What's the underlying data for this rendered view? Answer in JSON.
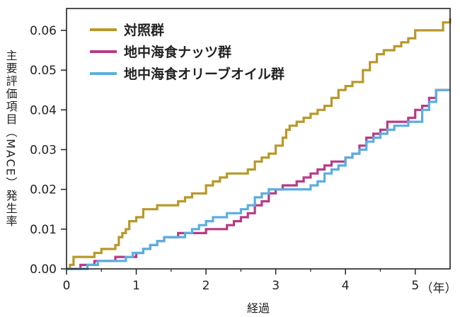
{
  "chart_data": {
    "type": "line",
    "xlabel": "経過",
    "x_unit": "（年）",
    "ylabel": "主要評価項目（MACE）発生率",
    "xlim": [
      0,
      5.5
    ],
    "ylim": [
      0,
      0.0655
    ],
    "x_ticks": [
      0,
      1,
      2,
      3,
      4,
      5
    ],
    "x_tick_labels": [
      "0",
      "1",
      "2",
      "3",
      "4",
      "5"
    ],
    "y_ticks": [
      0,
      0.01,
      0.02,
      0.03,
      0.04,
      0.05,
      0.06
    ],
    "y_tick_labels": [
      "0.00",
      "0.01",
      "0.02",
      "0.03",
      "0.04",
      "0.05",
      "0.06"
    ],
    "grid": false,
    "legend_position": "top-left",
    "series": [
      {
        "name": "対照群",
        "color": "#b8982a",
        "points": [
          [
            0,
            0
          ],
          [
            0.05,
            0.001
          ],
          [
            0.1,
            0.003
          ],
          [
            0.3,
            0.003
          ],
          [
            0.4,
            0.004
          ],
          [
            0.5,
            0.005
          ],
          [
            0.6,
            0.005
          ],
          [
            0.7,
            0.006
          ],
          [
            0.75,
            0.008
          ],
          [
            0.8,
            0.009
          ],
          [
            0.85,
            0.01
          ],
          [
            0.9,
            0.012
          ],
          [
            1.0,
            0.013
          ],
          [
            1.1,
            0.015
          ],
          [
            1.2,
            0.015
          ],
          [
            1.3,
            0.016
          ],
          [
            1.5,
            0.016
          ],
          [
            1.6,
            0.017
          ],
          [
            1.7,
            0.018
          ],
          [
            1.8,
            0.019
          ],
          [
            1.9,
            0.019
          ],
          [
            2.0,
            0.021
          ],
          [
            2.1,
            0.022
          ],
          [
            2.2,
            0.023
          ],
          [
            2.3,
            0.024
          ],
          [
            2.5,
            0.024
          ],
          [
            2.6,
            0.025
          ],
          [
            2.7,
            0.027
          ],
          [
            2.8,
            0.028
          ],
          [
            2.9,
            0.029
          ],
          [
            3.0,
            0.031
          ],
          [
            3.1,
            0.033
          ],
          [
            3.15,
            0.035
          ],
          [
            3.2,
            0.036
          ],
          [
            3.3,
            0.037
          ],
          [
            3.4,
            0.038
          ],
          [
            3.5,
            0.039
          ],
          [
            3.6,
            0.04
          ],
          [
            3.7,
            0.041
          ],
          [
            3.8,
            0.043
          ],
          [
            3.9,
            0.045
          ],
          [
            4.0,
            0.046
          ],
          [
            4.1,
            0.047
          ],
          [
            4.25,
            0.05
          ],
          [
            4.35,
            0.052
          ],
          [
            4.45,
            0.054
          ],
          [
            4.55,
            0.055
          ],
          [
            4.7,
            0.056
          ],
          [
            4.8,
            0.057
          ],
          [
            4.9,
            0.058
          ],
          [
            5.0,
            0.06
          ],
          [
            5.4,
            0.062
          ],
          [
            5.5,
            0.063
          ]
        ]
      },
      {
        "name": "地中海食ナッツ群",
        "color": "#b83a86",
        "points": [
          [
            0,
            0
          ],
          [
            0.2,
            0.001
          ],
          [
            0.4,
            0.002
          ],
          [
            0.6,
            0.002
          ],
          [
            0.7,
            0.003
          ],
          [
            1.0,
            0.004
          ],
          [
            1.1,
            0.005
          ],
          [
            1.2,
            0.006
          ],
          [
            1.3,
            0.007
          ],
          [
            1.4,
            0.008
          ],
          [
            1.6,
            0.009
          ],
          [
            1.8,
            0.009
          ],
          [
            2.0,
            0.01
          ],
          [
            2.15,
            0.01
          ],
          [
            2.25,
            0.01
          ],
          [
            2.3,
            0.011
          ],
          [
            2.4,
            0.012
          ],
          [
            2.5,
            0.013
          ],
          [
            2.6,
            0.014
          ],
          [
            2.7,
            0.016
          ],
          [
            2.8,
            0.017
          ],
          [
            2.9,
            0.019
          ],
          [
            3.0,
            0.02
          ],
          [
            3.1,
            0.021
          ],
          [
            3.2,
            0.021
          ],
          [
            3.3,
            0.022
          ],
          [
            3.4,
            0.023
          ],
          [
            3.5,
            0.024
          ],
          [
            3.6,
            0.025
          ],
          [
            3.7,
            0.026
          ],
          [
            3.8,
            0.027
          ],
          [
            4.0,
            0.028
          ],
          [
            4.1,
            0.029
          ],
          [
            4.2,
            0.031
          ],
          [
            4.3,
            0.033
          ],
          [
            4.4,
            0.034
          ],
          [
            4.5,
            0.035
          ],
          [
            4.6,
            0.037
          ],
          [
            4.8,
            0.037
          ],
          [
            4.9,
            0.038
          ],
          [
            5.0,
            0.04
          ],
          [
            5.1,
            0.041
          ],
          [
            5.2,
            0.043
          ],
          [
            5.3,
            0.045
          ],
          [
            5.5,
            0.045
          ]
        ]
      },
      {
        "name": "地中海食オリーブオイル群",
        "color": "#5aaee0",
        "points": [
          [
            0,
            0
          ],
          [
            0.3,
            0.001
          ],
          [
            0.45,
            0.002
          ],
          [
            0.7,
            0.002
          ],
          [
            0.85,
            0.003
          ],
          [
            0.95,
            0.004
          ],
          [
            1.1,
            0.005
          ],
          [
            1.2,
            0.006
          ],
          [
            1.3,
            0.007
          ],
          [
            1.4,
            0.008
          ],
          [
            1.6,
            0.008
          ],
          [
            1.7,
            0.009
          ],
          [
            1.8,
            0.01
          ],
          [
            1.9,
            0.011
          ],
          [
            2.0,
            0.012
          ],
          [
            2.1,
            0.013
          ],
          [
            2.2,
            0.013
          ],
          [
            2.3,
            0.014
          ],
          [
            2.4,
            0.014
          ],
          [
            2.5,
            0.015
          ],
          [
            2.6,
            0.016
          ],
          [
            2.7,
            0.018
          ],
          [
            2.8,
            0.019
          ],
          [
            2.9,
            0.02
          ],
          [
            3.0,
            0.02
          ],
          [
            3.1,
            0.02
          ],
          [
            3.2,
            0.02
          ],
          [
            3.3,
            0.02
          ],
          [
            3.5,
            0.021
          ],
          [
            3.6,
            0.022
          ],
          [
            3.7,
            0.024
          ],
          [
            3.8,
            0.025
          ],
          [
            3.9,
            0.026
          ],
          [
            4.0,
            0.028
          ],
          [
            4.1,
            0.029
          ],
          [
            4.2,
            0.03
          ],
          [
            4.3,
            0.032
          ],
          [
            4.4,
            0.033
          ],
          [
            4.5,
            0.034
          ],
          [
            4.6,
            0.035
          ],
          [
            4.7,
            0.036
          ],
          [
            4.9,
            0.037
          ],
          [
            5.0,
            0.037
          ],
          [
            5.1,
            0.04
          ],
          [
            5.2,
            0.042
          ],
          [
            5.3,
            0.045
          ],
          [
            5.5,
            0.045
          ]
        ]
      }
    ]
  }
}
